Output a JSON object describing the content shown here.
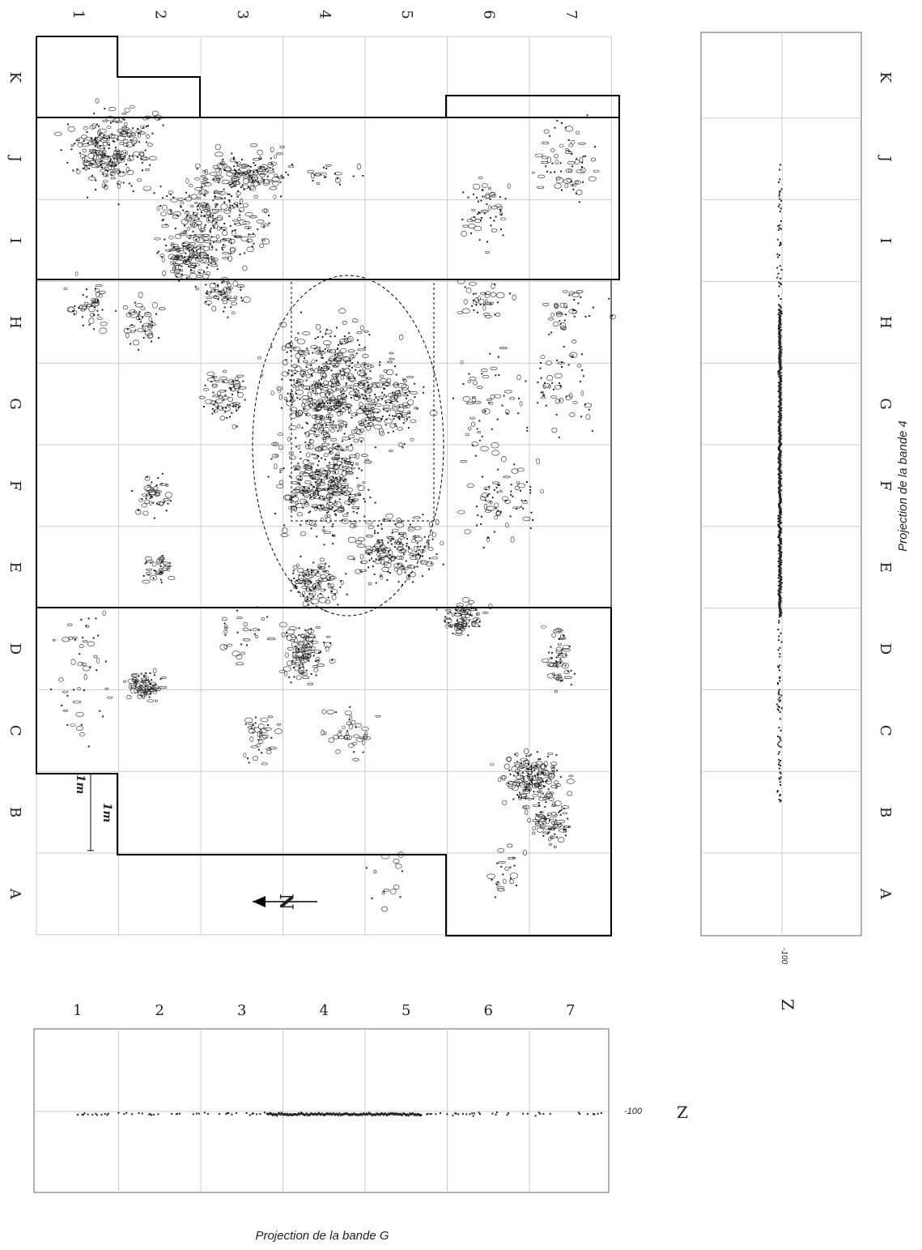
{
  "columns": [
    "1",
    "2",
    "3",
    "4",
    "5",
    "6",
    "7"
  ],
  "rows": [
    "K",
    "J",
    "I",
    "H",
    "G",
    "F",
    "E",
    "D",
    "C",
    "B",
    "A"
  ],
  "scale_label": "1m",
  "north_label": "N",
  "side_projection": {
    "caption": "Projection de la bande 4",
    "z_tick": "-100",
    "z_axis": "Z"
  },
  "bottom_projection": {
    "caption": "Projection de la bande G",
    "z_tick": "-100",
    "z_axis": "Z"
  },
  "colors": {
    "line": "#000000",
    "grid": "#cccccc",
    "dots": "#222222"
  }
}
